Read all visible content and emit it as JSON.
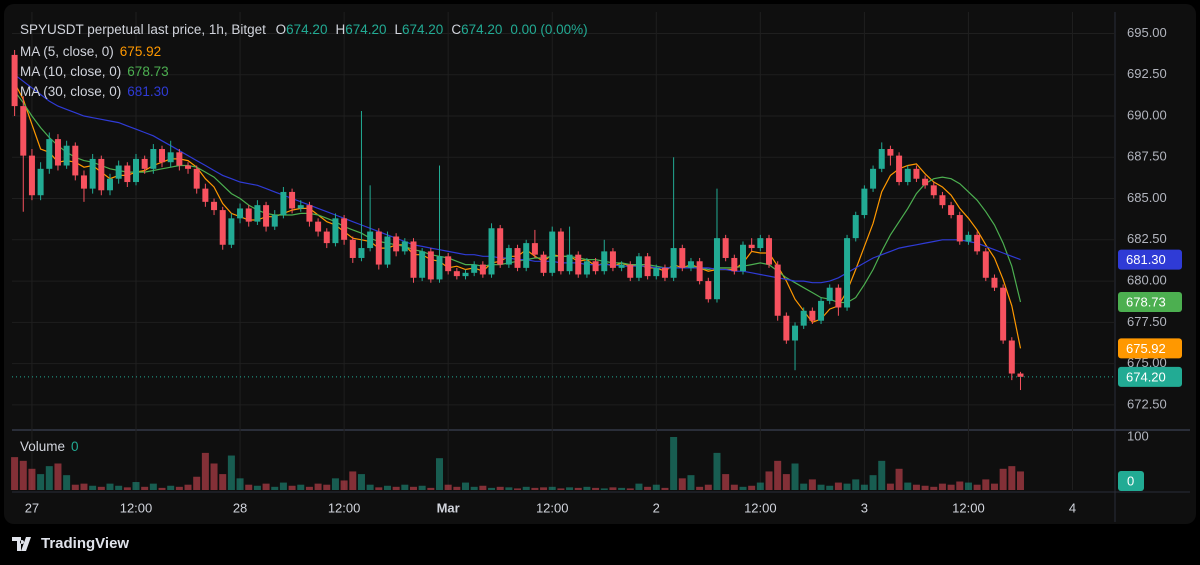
{
  "chart_data": {
    "type": "candlestick",
    "title": "SPYUSDT perpetual last price, 1h, Bitget",
    "ohlc_readout": [
      {
        "key": "O",
        "value": "674.20"
      },
      {
        "key": "H",
        "value": "674.20"
      },
      {
        "key": "L",
        "value": "674.20"
      },
      {
        "key": "C",
        "value": "674.20"
      }
    ],
    "change": "0.00 (0.00%)",
    "up_color": "#22ab94",
    "down_color": "#f7525f",
    "candles": [
      [
        693.7,
        694.0,
        690.0,
        690.6
      ],
      [
        690.6,
        691.2,
        684.2,
        687.6
      ],
      [
        687.6,
        688.0,
        684.9,
        685.2
      ],
      [
        685.2,
        687.2,
        684.9,
        686.8
      ],
      [
        686.8,
        689.0,
        686.5,
        688.6
      ],
      [
        688.6,
        688.9,
        686.7,
        687.0
      ],
      [
        687.0,
        688.5,
        686.8,
        688.2
      ],
      [
        688.2,
        688.4,
        686.1,
        686.4
      ],
      [
        686.4,
        686.7,
        684.8,
        685.6
      ],
      [
        685.6,
        687.7,
        685.3,
        687.4
      ],
      [
        687.4,
        687.6,
        685.2,
        685.5
      ],
      [
        685.5,
        686.5,
        685.2,
        686.2
      ],
      [
        686.2,
        687.3,
        685.9,
        687.0
      ],
      [
        687.0,
        687.2,
        685.7,
        686.0
      ],
      [
        686.0,
        687.7,
        685.8,
        687.4
      ],
      [
        687.4,
        687.6,
        686.5,
        686.8
      ],
      [
        686.8,
        688.3,
        686.5,
        688.0
      ],
      [
        688.0,
        688.2,
        686.9,
        687.2
      ],
      [
        687.2,
        688.5,
        686.9,
        687.8
      ],
      [
        687.8,
        688.0,
        686.7,
        687.0
      ],
      [
        687.0,
        687.2,
        686.5,
        686.8
      ],
      [
        686.8,
        687.0,
        685.3,
        685.6
      ],
      [
        685.6,
        685.9,
        684.5,
        684.8
      ],
      [
        684.8,
        685.0,
        684.0,
        684.3
      ],
      [
        684.3,
        684.5,
        681.9,
        682.2
      ],
      [
        682.2,
        684.1,
        682.0,
        683.8
      ],
      [
        683.8,
        684.7,
        683.5,
        684.4
      ],
      [
        684.4,
        684.6,
        683.3,
        683.6
      ],
      [
        683.6,
        684.9,
        683.4,
        684.6
      ],
      [
        684.6,
        684.8,
        683.0,
        683.3
      ],
      [
        683.3,
        684.3,
        683.1,
        684.0
      ],
      [
        684.0,
        685.7,
        683.8,
        685.4
      ],
      [
        685.4,
        685.6,
        684.1,
        684.4
      ],
      [
        684.4,
        684.9,
        684.2,
        684.6
      ],
      [
        684.6,
        684.8,
        683.3,
        683.6
      ],
      [
        683.6,
        683.8,
        682.7,
        683.0
      ],
      [
        683.0,
        683.2,
        682.0,
        682.3
      ],
      [
        682.3,
        684.1,
        682.1,
        683.8
      ],
      [
        683.8,
        684.0,
        682.2,
        682.5
      ],
      [
        682.5,
        682.7,
        681.1,
        681.4
      ],
      [
        681.4,
        690.3,
        681.2,
        682.0
      ],
      [
        682.0,
        685.8,
        681.8,
        683.0
      ],
      [
        683.0,
        683.2,
        680.7,
        681.0
      ],
      [
        681.0,
        683.0,
        680.8,
        682.7
      ],
      [
        682.7,
        682.9,
        681.5,
        681.8
      ],
      [
        681.8,
        682.6,
        681.6,
        682.4
      ],
      [
        682.4,
        682.6,
        679.9,
        680.2
      ],
      [
        680.2,
        682.0,
        680.0,
        681.8
      ],
      [
        681.8,
        682.0,
        679.9,
        680.1
      ],
      [
        680.1,
        687.0,
        679.9,
        681.5
      ],
      [
        681.5,
        681.7,
        680.4,
        680.6
      ],
      [
        680.6,
        680.8,
        680.1,
        680.3
      ],
      [
        680.3,
        680.7,
        680.1,
        680.5
      ],
      [
        680.5,
        681.2,
        680.3,
        681.0
      ],
      [
        681.0,
        681.2,
        680.2,
        680.4
      ],
      [
        680.4,
        683.5,
        680.2,
        683.2
      ],
      [
        683.2,
        683.4,
        680.8,
        681.0
      ],
      [
        681.0,
        682.2,
        680.8,
        682.0
      ],
      [
        682.0,
        682.2,
        680.6,
        680.8
      ],
      [
        680.8,
        682.5,
        680.6,
        682.3
      ],
      [
        682.3,
        683.1,
        681.4,
        681.6
      ],
      [
        681.6,
        681.8,
        680.3,
        680.5
      ],
      [
        680.5,
        683.3,
        680.3,
        683.0
      ],
      [
        683.0,
        683.2,
        680.4,
        680.6
      ],
      [
        680.6,
        683.3,
        680.4,
        681.6
      ],
      [
        681.6,
        681.8,
        680.2,
        680.4
      ],
      [
        680.4,
        681.4,
        680.2,
        681.2
      ],
      [
        681.2,
        681.4,
        680.4,
        680.6
      ],
      [
        680.6,
        682.5,
        680.4,
        681.8
      ],
      [
        681.8,
        682.0,
        680.6,
        680.8
      ],
      [
        680.8,
        681.2,
        680.6,
        681.0
      ],
      [
        681.0,
        681.2,
        680.0,
        680.2
      ],
      [
        680.2,
        681.7,
        680.0,
        681.5
      ],
      [
        681.5,
        681.7,
        680.1,
        680.3
      ],
      [
        680.3,
        681.0,
        680.1,
        680.8
      ],
      [
        680.8,
        681.0,
        680.0,
        680.2
      ],
      [
        680.2,
        687.5,
        680.0,
        682.0
      ],
      [
        682.0,
        682.2,
        680.6,
        680.8
      ],
      [
        680.8,
        681.4,
        680.6,
        681.2
      ],
      [
        681.2,
        681.4,
        679.8,
        680.0
      ],
      [
        680.0,
        680.2,
        678.7,
        678.9
      ],
      [
        678.9,
        685.6,
        678.7,
        682.6
      ],
      [
        682.6,
        682.8,
        681.2,
        681.4
      ],
      [
        681.4,
        681.6,
        680.4,
        680.6
      ],
      [
        680.6,
        682.4,
        680.4,
        682.2
      ],
      [
        682.2,
        682.6,
        681.8,
        682.0
      ],
      [
        682.0,
        682.8,
        681.8,
        682.6
      ],
      [
        682.6,
        682.8,
        680.8,
        681.0
      ],
      [
        681.0,
        681.2,
        677.6,
        677.9
      ],
      [
        677.9,
        678.1,
        676.2,
        676.4
      ],
      [
        676.4,
        677.5,
        674.6,
        677.3
      ],
      [
        677.3,
        678.4,
        677.1,
        678.2
      ],
      [
        678.2,
        678.4,
        677.4,
        677.6
      ],
      [
        677.6,
        679.0,
        677.4,
        678.8
      ],
      [
        678.8,
        679.8,
        678.6,
        679.6
      ],
      [
        679.6,
        679.8,
        677.9,
        678.4
      ],
      [
        678.4,
        682.8,
        678.2,
        682.6
      ],
      [
        682.6,
        684.2,
        682.4,
        684.0
      ],
      [
        684.0,
        685.8,
        683.8,
        685.6
      ],
      [
        685.6,
        687.0,
        685.4,
        686.8
      ],
      [
        686.8,
        688.4,
        686.6,
        688.0
      ],
      [
        688.0,
        688.2,
        687.0,
        687.6
      ],
      [
        687.6,
        687.8,
        685.8,
        686.0
      ],
      [
        686.0,
        687.0,
        685.8,
        686.8
      ],
      [
        686.8,
        687.0,
        686.0,
        686.2
      ],
      [
        686.2,
        686.4,
        685.6,
        685.8
      ],
      [
        685.8,
        686.0,
        685.0,
        685.2
      ],
      [
        685.2,
        685.4,
        684.4,
        684.6
      ],
      [
        684.6,
        684.8,
        683.8,
        684.0
      ],
      [
        684.0,
        684.2,
        682.2,
        682.4
      ],
      [
        682.4,
        683.0,
        682.2,
        682.8
      ],
      [
        682.8,
        683.0,
        681.6,
        681.8
      ],
      [
        681.8,
        682.0,
        680.0,
        680.2
      ],
      [
        680.2,
        680.4,
        679.4,
        679.6
      ],
      [
        679.6,
        679.8,
        676.2,
        676.4
      ],
      [
        676.4,
        676.6,
        674.0,
        674.4
      ],
      [
        674.4,
        674.5,
        673.4,
        674.2
      ]
    ],
    "series": [
      {
        "name": "MA (5, close, 0)",
        "color": "#ff9800",
        "last_label": "675.92",
        "values": [
          692,
          691,
          689.5,
          688,
          687.8,
          687.2,
          687.3,
          687.2,
          686.9,
          687.0,
          686.6,
          686.2,
          686.4,
          686.4,
          686.6,
          686.7,
          687.0,
          687.2,
          687.4,
          687.4,
          687.3,
          686.9,
          686.2,
          685.7,
          684.7,
          684.1,
          683.9,
          683.7,
          683.7,
          683.9,
          683.9,
          684.1,
          684.3,
          684.4,
          684.4,
          684.0,
          683.6,
          683.4,
          683.0,
          682.6,
          682.5,
          682.4,
          682.0,
          682.0,
          682.2,
          682.2,
          681.6,
          681.6,
          681.3,
          681.2,
          680.8,
          680.9,
          680.7,
          680.8,
          680.6,
          681.1,
          681.2,
          681.5,
          681.5,
          681.9,
          681.5,
          681.2,
          681.6,
          681.5,
          681.5,
          681.2,
          681.3,
          680.9,
          681.1,
          680.9,
          681.1,
          680.9,
          681.0,
          680.8,
          680.8,
          680.6,
          681.0,
          680.8,
          681.0,
          680.8,
          680.6,
          680.7,
          680.7,
          680.7,
          681.1,
          681.8,
          681.7,
          681.7,
          680.9,
          680.0,
          678.9,
          678.2,
          677.5,
          677.7,
          678.3,
          678.5,
          679.4,
          680.7,
          682.1,
          683.5,
          685.4,
          686.4,
          686.8,
          687.0,
          687.1,
          686.5,
          686.0,
          685.7,
          685.2,
          684.4,
          683.8,
          683.1,
          682.2,
          681.4,
          680.1,
          678.5,
          675.92
        ]
      },
      {
        "name": "MA (10, close, 0)",
        "color": "#4caf50",
        "last_label": "678.73",
        "values": [
          691.5,
          690.8,
          690.0,
          689.3,
          688.7,
          688.2,
          687.8,
          687.5,
          687.3,
          687.2,
          687.0,
          686.8,
          686.7,
          686.6,
          686.6,
          686.6,
          686.7,
          686.8,
          686.9,
          687.0,
          687.0,
          686.9,
          686.6,
          686.3,
          685.8,
          685.3,
          685.0,
          684.6,
          684.3,
          684.1,
          684.0,
          684.0,
          684.0,
          684.1,
          684.1,
          684.0,
          683.8,
          683.6,
          683.3,
          683.1,
          682.9,
          682.6,
          682.4,
          682.3,
          682.2,
          682.1,
          681.9,
          681.8,
          681.6,
          681.5,
          681.4,
          681.2,
          681.0,
          681.0,
          680.9,
          681.0,
          681.0,
          681.1,
          681.2,
          681.3,
          681.4,
          681.4,
          681.5,
          681.5,
          681.5,
          681.4,
          681.3,
          681.3,
          681.2,
          681.1,
          681.1,
          681.0,
          681.0,
          681.0,
          680.9,
          680.8,
          680.8,
          680.8,
          680.9,
          680.8,
          680.7,
          680.8,
          680.8,
          680.8,
          680.9,
          681.0,
          681.1,
          681.0,
          680.6,
          680.2,
          679.9,
          679.6,
          679.3,
          679.0,
          678.9,
          678.7,
          678.7,
          679.0,
          679.8,
          680.7,
          681.8,
          682.8,
          683.6,
          684.4,
          685.3,
          685.9,
          686.2,
          686.3,
          686.2,
          685.9,
          685.4,
          684.9,
          684.2,
          683.4,
          682.3,
          680.9,
          678.73
        ]
      },
      {
        "name": "MA (30, close, 0)",
        "color": "#2f3bd6",
        "last_label": "681.30",
        "values": [
          692.5,
          692.1,
          691.7,
          691.3,
          690.9,
          690.6,
          690.4,
          690.2,
          690.0,
          689.9,
          689.8,
          689.7,
          689.6,
          689.4,
          689.2,
          689.0,
          688.8,
          688.5,
          688.2,
          687.9,
          687.6,
          687.3,
          687.0,
          686.7,
          686.4,
          686.2,
          686.0,
          685.9,
          685.8,
          685.6,
          685.4,
          685.2,
          685.0,
          684.8,
          684.6,
          684.4,
          684.2,
          684.0,
          683.8,
          683.6,
          683.4,
          683.2,
          683.0,
          682.8,
          682.6,
          682.4,
          682.2,
          682.1,
          682.0,
          681.9,
          681.8,
          681.7,
          681.6,
          681.6,
          681.5,
          681.5,
          681.4,
          681.4,
          681.3,
          681.3,
          681.2,
          681.2,
          681.2,
          681.1,
          681.1,
          681.1,
          681.0,
          681.0,
          681.0,
          681.0,
          680.9,
          680.9,
          680.9,
          680.9,
          680.8,
          680.8,
          680.8,
          680.8,
          680.8,
          680.8,
          680.8,
          680.7,
          680.7,
          680.6,
          680.6,
          680.5,
          680.4,
          680.3,
          680.2,
          680.1,
          680.0,
          680.0,
          679.9,
          679.9,
          680.0,
          680.2,
          680.5,
          680.8,
          681.1,
          681.4,
          681.6,
          681.8,
          682.0,
          682.1,
          682.2,
          682.3,
          682.4,
          682.5,
          682.5,
          682.5,
          682.4,
          682.3,
          682.1,
          681.9,
          681.7,
          681.5,
          681.3
        ]
      }
    ],
    "last_price": {
      "value": 674.2,
      "label": "674.20"
    },
    "ylim": [
      671.1,
      696.3
    ],
    "yticks": [
      {
        "value": 672.5,
        "label": "672.50"
      },
      {
        "value": 675,
        "label": "675.00"
      },
      {
        "value": 677.5,
        "label": "677.50"
      },
      {
        "value": 680,
        "label": "680.00"
      },
      {
        "value": 682.5,
        "label": "682.50"
      },
      {
        "value": 685,
        "label": "685.00"
      },
      {
        "value": 687.5,
        "label": "687.50"
      },
      {
        "value": 690,
        "label": "690.00"
      },
      {
        "value": 692.5,
        "label": "692.50"
      },
      {
        "value": 695,
        "label": "695.00"
      }
    ],
    "xlim": [
      -0.3,
      126.9
    ],
    "xticks": [
      {
        "value": 2,
        "label": "27"
      },
      {
        "value": 14,
        "label": "12:00"
      },
      {
        "value": 26,
        "label": "28"
      },
      {
        "value": 38,
        "label": "12:00"
      },
      {
        "value": 50,
        "label": "Mar"
      },
      {
        "value": 62,
        "label": "12:00"
      },
      {
        "value": 74,
        "label": "2"
      },
      {
        "value": 86,
        "label": "12:00"
      },
      {
        "value": 98,
        "label": "3"
      },
      {
        "value": 110,
        "label": "12:00"
      },
      {
        "value": 122,
        "label": "4"
      }
    ],
    "grid": true,
    "volume": {
      "name": "Volume",
      "current": 0,
      "vlim": [
        0,
        109.4
      ],
      "vticks": [
        100
      ],
      "values": [
        62,
        55,
        40,
        30,
        45,
        50,
        28,
        10,
        12,
        8,
        6,
        12,
        8,
        5,
        15,
        6,
        12,
        4,
        8,
        6,
        10,
        25,
        70,
        50,
        30,
        65,
        22,
        10,
        8,
        12,
        6,
        14,
        8,
        10,
        6,
        12,
        10,
        22,
        18,
        35,
        30,
        10,
        5,
        8,
        6,
        10,
        6,
        8,
        4,
        60,
        10,
        6,
        14,
        6,
        8,
        4,
        6,
        5,
        3,
        6,
        4,
        5,
        6,
        3,
        5,
        4,
        6,
        4,
        3,
        5,
        4,
        3,
        12,
        6,
        10,
        4,
        100,
        22,
        28,
        6,
        10,
        70,
        30,
        10,
        6,
        8,
        14,
        35,
        55,
        30,
        50,
        12,
        20,
        10,
        8,
        14,
        12,
        20,
        10,
        28,
        55,
        12,
        40,
        14,
        10,
        8,
        6,
        12,
        10,
        16,
        14,
        10,
        20,
        12,
        40,
        45,
        35
      ]
    },
    "brand": "TradingView"
  }
}
